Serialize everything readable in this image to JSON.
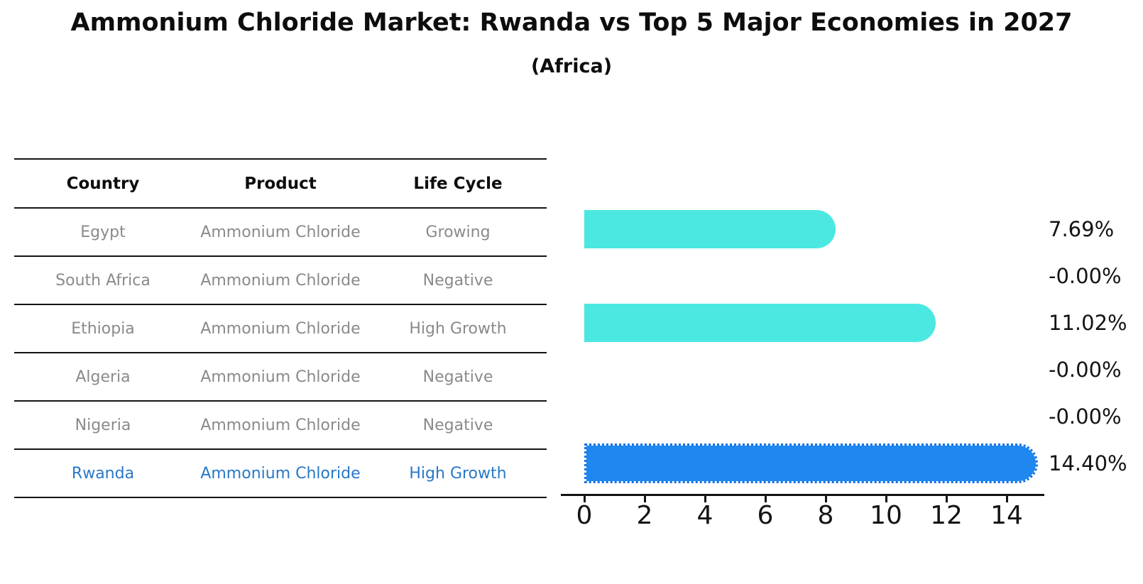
{
  "title": "Ammonium Chloride Market: Rwanda vs Top 5 Major Economies in 2027",
  "subtitle": "(Africa)",
  "table": {
    "headers": [
      "Country",
      "Product",
      "Life Cycle"
    ],
    "rows": [
      {
        "country": "Egypt",
        "product": "Ammonium Chloride",
        "life_cycle": "Growing",
        "highlight": false
      },
      {
        "country": "South Africa",
        "product": "Ammonium Chloride",
        "life_cycle": "Negative",
        "highlight": false
      },
      {
        "country": "Ethiopia",
        "product": "Ammonium Chloride",
        "life_cycle": "High Growth",
        "highlight": false
      },
      {
        "country": "Algeria",
        "product": "Ammonium Chloride",
        "life_cycle": "Negative",
        "highlight": false
      },
      {
        "country": "Nigeria",
        "product": "Ammonium Chloride",
        "life_cycle": "Negative",
        "highlight": false
      },
      {
        "country": "Rwanda",
        "product": "Ammonium Chloride",
        "life_cycle": "High Growth",
        "highlight": true
      }
    ]
  },
  "chart_data": {
    "type": "bar",
    "orientation": "horizontal",
    "title": "Ammonium Chloride Market: Rwanda vs Top 5 Major Economies in 2027",
    "subtitle": "(Africa)",
    "categories": [
      "Egypt",
      "South Africa",
      "Ethiopia",
      "Algeria",
      "Nigeria",
      "Rwanda"
    ],
    "values": [
      7.69,
      0.0,
      11.02,
      0.0,
      0.0,
      14.4
    ],
    "value_labels": [
      "7.69%",
      "-0.00%",
      "11.02%",
      "-0.00%",
      "-0.00%",
      "14.40%"
    ],
    "x_ticks": [
      0,
      2,
      4,
      6,
      8,
      10,
      12,
      14
    ],
    "xlim": [
      -0.8,
      15.25
    ],
    "grid": false,
    "legend": false,
    "highlight_index": 5,
    "colors": {
      "bar": "#4ae8e0",
      "highlight_bar": "#1e87f0",
      "highlight_text": "#2878c8",
      "row_text": "#8a8a8a",
      "axis": "#141414"
    }
  }
}
